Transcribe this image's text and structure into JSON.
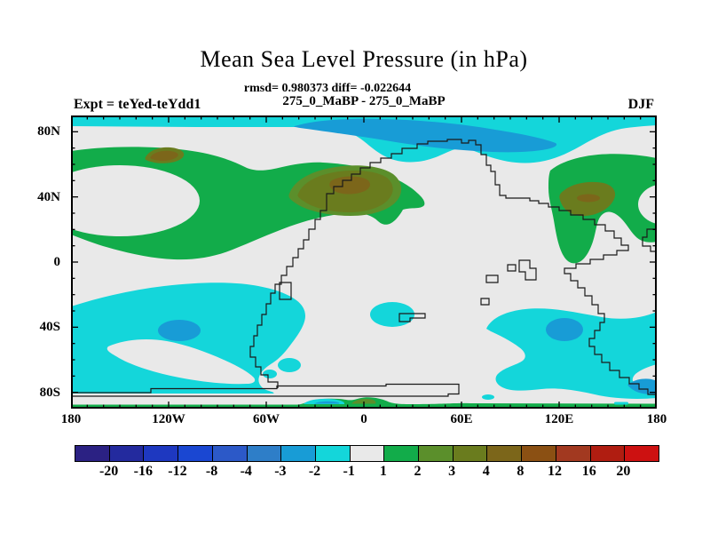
{
  "title": "Mean Sea Level Pressure (in hPa)",
  "stats_line": "rmsd= 0.980373 diff= -0.022644",
  "case_line": "275_0_MaBP - 275_0_MaBP",
  "experiment_label": "Expt = teYed-teYdd1",
  "season_label": "DJF",
  "axes": {
    "lat_labels": [
      "80N",
      "40N",
      "0",
      "40S",
      "80S"
    ],
    "lon_labels": [
      "180",
      "120W",
      "60W",
      "0",
      "60E",
      "120E",
      "180"
    ]
  },
  "palette": {
    "gray": "#E9E9E9",
    "cyan": "#14D6DA",
    "blue": "#189CD6",
    "green": "#12AC4A",
    "olive_green": "#5B8F2B",
    "dark_olive": "#6A7C1E",
    "brown": "#7C661A",
    "coast": "#1a1a1a"
  },
  "colorbar": {
    "tick_labels": [
      "-20",
      "-16",
      "-12",
      "-8",
      "-4",
      "-3",
      "-2",
      "-1",
      "1",
      "2",
      "3",
      "4",
      "8",
      "12",
      "16",
      "20"
    ],
    "segment_colors": [
      "#2B2183",
      "#232A9E",
      "#1E38C0",
      "#1A47D2",
      "#2C59C8",
      "#2E7EC8",
      "#189CD6",
      "#14D6DA",
      "#E9E9E9",
      "#12AC4A",
      "#5B8F2B",
      "#6A7C1E",
      "#7C661A",
      "#8B5013",
      "#A23920",
      "#B01D11",
      "#CD1111"
    ]
  },
  "chart_data": {
    "type": "filled_contour_map",
    "title": "Mean Sea Level Pressure (in hPa)",
    "subtitle": "rmsd= 0.980373 diff= -0.022644",
    "comparison": "275_0_MaBP - 275_0_MaBP",
    "experiment": "teYed-teYdd1",
    "season": "DJF",
    "units": "hPa",
    "rmsd": 0.980373,
    "diff": -0.022644,
    "contour_levels": [
      -20,
      -16,
      -12,
      -8,
      -4,
      -3,
      -2,
      -1,
      1,
      2,
      3,
      4,
      8,
      12,
      16,
      20
    ],
    "lon_range_deg": [
      -180,
      180
    ],
    "lat_range_deg": [
      -90,
      90
    ],
    "lon_ticks": [
      "180",
      "120W",
      "60W",
      "0",
      "60E",
      "120E",
      "180"
    ],
    "lat_ticks": [
      "80N",
      "40N",
      "0",
      "40S",
      "80S"
    ],
    "legend_position": "bottom horizontal colorbar",
    "grid": false,
    "regions": [
      {
        "name": "north polar negative band",
        "value_range": "-3 to -1 hPa",
        "extent": "75N-90N all longitudes, core -3 to -2 near 60W-60E"
      },
      {
        "name": "NH mid-latitude positive band",
        "value_range": "1 to 8 hPa",
        "extent": "20N-55N, maxima 4-8 hPa near 20W-0 and 130E-150E, small 4-8 patch near 130W, 60N"
      },
      {
        "name": "SH subtropical negative band",
        "value_range": "-3 to -1 hPa",
        "extent": "25S-75S, cores -3 to -2 near 120W 45S, 45E 45S, 160E 75S"
      },
      {
        "name": "near-zero background",
        "value_range": "-1 to 1 hPa",
        "extent": "tropics and most of continent interior"
      },
      {
        "name": "Antarctic coast strip",
        "value_range": "1 to 3 hPa",
        "extent": "thin band along 88S with small -3 to -1 lens near 20W"
      }
    ]
  }
}
